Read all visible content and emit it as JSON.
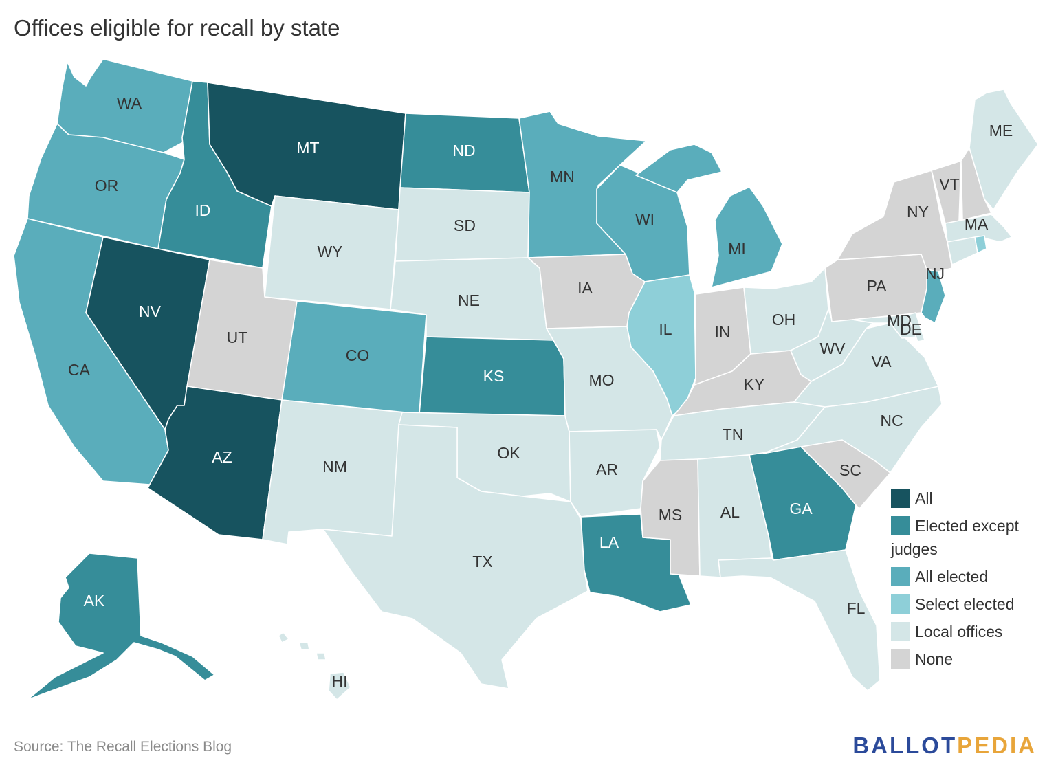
{
  "title": "Offices eligible for recall by state",
  "source": "Source: The Recall Elections Blog",
  "brand": {
    "part1": "BALLOT",
    "part2": "PEDIA",
    "color1": "#2b4a9a",
    "color2": "#e8a53a"
  },
  "categories": {
    "all": {
      "label": "All",
      "color": "#17535f"
    },
    "elected_except_judges": {
      "label": "Elected except judges",
      "color": "#368d99"
    },
    "all_elected": {
      "label": "All elected",
      "color": "#5aadbb"
    },
    "select_elected": {
      "label": "Select elected",
      "color": "#8ecfd8"
    },
    "local_offices": {
      "label": "Local offices",
      "color": "#d4e6e7"
    },
    "none": {
      "label": "None",
      "color": "#d4d4d4"
    }
  },
  "legend_order": [
    "all",
    "elected_except_judges",
    "all_elected",
    "select_elected",
    "local_offices",
    "none"
  ],
  "states": {
    "WA": "all_elected",
    "OR": "all_elected",
    "CA": "all_elected",
    "ID": "elected_except_judges",
    "NV": "all",
    "MT": "all",
    "WY": "local_offices",
    "UT": "none",
    "AZ": "all",
    "CO": "all_elected",
    "NM": "local_offices",
    "ND": "elected_except_judges",
    "SD": "local_offices",
    "NE": "local_offices",
    "KS": "elected_except_judges",
    "OK": "local_offices",
    "TX": "local_offices",
    "MN": "all_elected",
    "IA": "none",
    "MO": "local_offices",
    "AR": "local_offices",
    "LA": "elected_except_judges",
    "WI": "all_elected",
    "IL": "select_elected",
    "MI": "all_elected",
    "IN": "none",
    "OH": "local_offices",
    "KY": "none",
    "TN": "local_offices",
    "MS": "none",
    "AL": "local_offices",
    "GA": "elected_except_judges",
    "FL": "local_offices",
    "SC": "none",
    "NC": "local_offices",
    "VA": "local_offices",
    "WV": "local_offices",
    "PA": "none",
    "NY": "none",
    "VT": "none",
    "NH": "none",
    "ME": "local_offices",
    "MA": "local_offices",
    "RI": "select_elected",
    "CT": "local_offices",
    "NJ": "all_elected",
    "DE": "local_offices",
    "MD": "local_offices",
    "AK": "elected_except_judges",
    "HI": "local_offices"
  }
}
